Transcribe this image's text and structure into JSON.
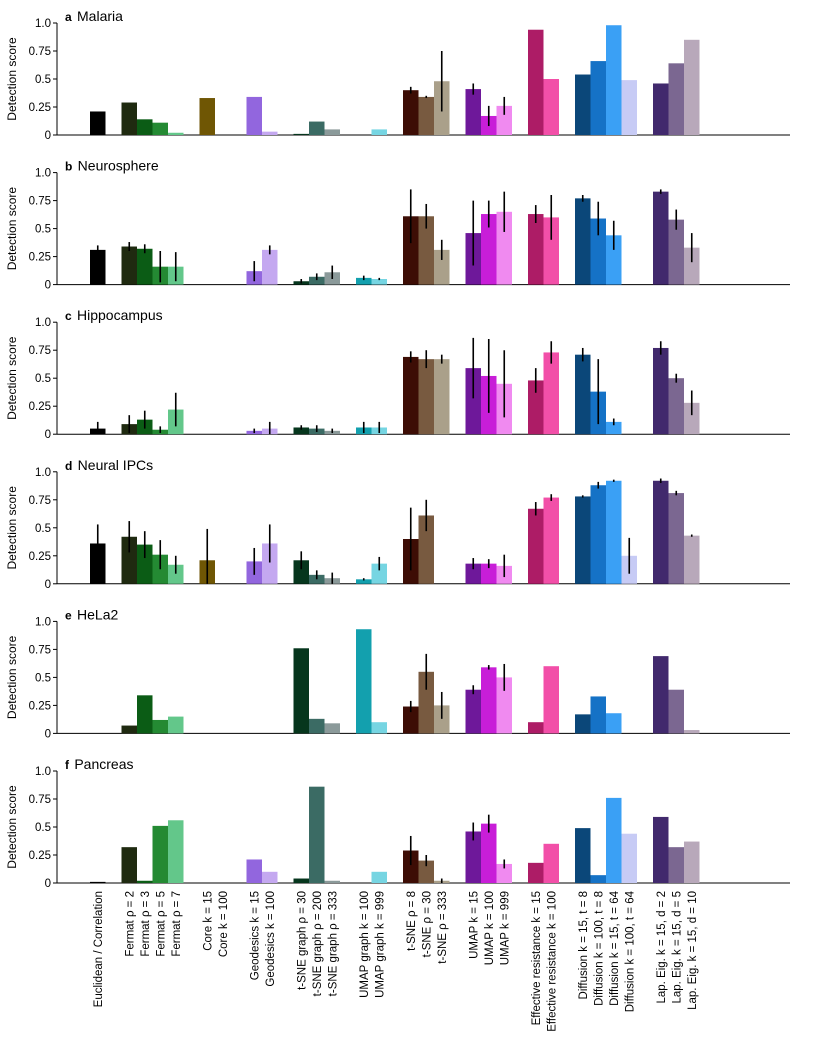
{
  "chart_data": {
    "type": "bar",
    "ylabel": "Detection score",
    "ylim": [
      0,
      1
    ],
    "yticks": [
      "0",
      "0.25",
      "0.5",
      "0.75",
      "1.0"
    ],
    "categories": [
      "Euclidean / Correlation",
      "Fermat ρ = 2",
      "Fermat ρ = 3",
      "Fermat ρ = 5",
      "Fermat ρ = 7",
      "Core k = 15",
      "Core k = 100",
      "Geodesics k = 15",
      "Geodesics k = 100",
      "t-SNE graph ρ = 30",
      "t-SNE graph ρ = 200",
      "t-SNE graph ρ = 333",
      "UMAP graph k = 100",
      "UMAP graph k = 999",
      "t-SNE ρ = 8",
      "t-SNE ρ = 30",
      "t-SNE ρ = 333",
      "UMAP k = 15",
      "UMAP k = 100",
      "UMAP k = 999",
      "Effective resistance k = 15",
      "Effective resistance k = 100",
      "Diffusion k = 15, t = 8",
      "Diffusion k = 100, t = 8",
      "Diffusion k = 15, t = 64",
      "Diffusion k = 100, t = 64",
      "Lap. Eig. k = 15, d = 2",
      "Lap. Eig. k = 15, d = 5",
      "Lap. Eig. k = 15, d = 10"
    ],
    "groups": [
      1,
      4,
      2,
      2,
      3,
      2,
      3,
      3,
      2,
      4,
      3
    ],
    "colors": [
      "#000000",
      "#1f2a10",
      "#0b5c15",
      "#248a33",
      "#63c78a",
      "#6f5604",
      "#a08720",
      "#9266de",
      "#c4a8f0",
      "#06361d",
      "#3b6b64",
      "#8b9a9a",
      "#13a0ae",
      "#76d5e2",
      "#3d0d05",
      "#785a40",
      "#aaa08a",
      "#6e189a",
      "#c81ed8",
      "#f08af0",
      "#ad1c66",
      "#f24fa8",
      "#0b4779",
      "#1572c6",
      "#3aa0f5",
      "#c7cbf5",
      "#41296d",
      "#7b6791",
      "#b8a8ba"
    ],
    "panels": [
      {
        "letter": "a",
        "title": "Malaria",
        "values": [
          0.21,
          0.29,
          0.14,
          0.11,
          0.02,
          0.33,
          null,
          0.34,
          0.03,
          0.01,
          0.12,
          0.05,
          null,
          0.05,
          0.4,
          0.34,
          0.48,
          0.41,
          0.17,
          0.26,
          0.94,
          0.5,
          0.54,
          0.66,
          0.98,
          0.49,
          0.46,
          0.64,
          0.85
        ],
        "errors": [
          null,
          null,
          null,
          null,
          null,
          null,
          null,
          null,
          null,
          null,
          null,
          null,
          null,
          null,
          0.03,
          0.01,
          0.27,
          0.05,
          0.09,
          0.08,
          null,
          null,
          null,
          null,
          null,
          null,
          null,
          null,
          null
        ]
      },
      {
        "letter": "b",
        "title": "Neurosphere",
        "values": [
          0.31,
          0.34,
          0.32,
          0.16,
          0.16,
          null,
          null,
          0.12,
          0.31,
          0.03,
          0.07,
          0.11,
          0.06,
          0.05,
          0.61,
          0.61,
          0.31,
          0.46,
          0.63,
          0.65,
          0.63,
          0.6,
          0.77,
          0.59,
          0.44,
          null,
          0.83,
          0.58,
          0.33
        ],
        "errors": [
          0.04,
          0.04,
          0.04,
          0.14,
          0.13,
          null,
          null,
          0.09,
          0.04,
          0.02,
          0.03,
          0.06,
          0.02,
          0.01,
          0.24,
          0.11,
          0.09,
          0.29,
          0.12,
          0.18,
          0.08,
          0.2,
          0.03,
          0.15,
          0.13,
          null,
          0.02,
          0.09,
          0.13
        ]
      },
      {
        "letter": "c",
        "title": "Hippocampus",
        "values": [
          0.05,
          0.09,
          0.13,
          0.04,
          0.22,
          null,
          null,
          0.03,
          0.05,
          0.06,
          0.05,
          0.03,
          0.06,
          0.06,
          0.69,
          0.67,
          0.67,
          0.59,
          0.52,
          0.45,
          0.48,
          0.73,
          0.71,
          0.38,
          0.11,
          null,
          0.77,
          0.5,
          0.28
        ],
        "errors": [
          0.06,
          0.08,
          0.08,
          0.03,
          0.15,
          null,
          null,
          0.02,
          0.06,
          0.02,
          0.03,
          0.02,
          0.05,
          0.05,
          0.05,
          0.08,
          0.04,
          0.27,
          0.33,
          0.3,
          0.11,
          0.1,
          0.06,
          0.29,
          0.03,
          null,
          0.06,
          0.04,
          0.11
        ]
      },
      {
        "letter": "d",
        "title": "Neural IPCs",
        "values": [
          0.36,
          0.42,
          0.35,
          0.26,
          0.17,
          0.21,
          null,
          0.2,
          0.36,
          0.21,
          0.08,
          0.05,
          0.04,
          0.18,
          0.4,
          0.61,
          null,
          0.18,
          0.18,
          0.16,
          0.67,
          0.77,
          0.78,
          0.88,
          0.92,
          0.25,
          0.92,
          0.81,
          0.43
        ],
        "errors": [
          0.17,
          0.14,
          0.12,
          0.13,
          0.08,
          0.28,
          null,
          0.12,
          0.17,
          0.08,
          0.04,
          0.05,
          0.01,
          0.06,
          0.28,
          0.14,
          null,
          0.05,
          0.04,
          0.1,
          0.06,
          0.03,
          0.01,
          0.03,
          0.01,
          0.16,
          0.02,
          0.02,
          0.01
        ]
      },
      {
        "letter": "e",
        "title": "HeLa2",
        "values": [
          null,
          0.07,
          0.34,
          0.12,
          0.15,
          null,
          null,
          null,
          null,
          0.76,
          0.13,
          0.09,
          0.93,
          0.1,
          0.24,
          0.55,
          0.25,
          0.39,
          0.59,
          0.5,
          0.1,
          0.6,
          0.17,
          0.33,
          0.18,
          null,
          0.69,
          0.39,
          0.03
        ],
        "errors": [
          null,
          null,
          null,
          null,
          null,
          null,
          null,
          null,
          null,
          null,
          null,
          null,
          null,
          null,
          0.05,
          0.16,
          0.12,
          0.04,
          0.02,
          0.12,
          null,
          null,
          null,
          null,
          null,
          null,
          null,
          null,
          null
        ]
      },
      {
        "letter": "f",
        "title": "Pancreas",
        "values": [
          0.01,
          0.32,
          0.02,
          0.51,
          0.56,
          null,
          null,
          0.21,
          0.1,
          0.04,
          0.86,
          0.02,
          null,
          0.1,
          0.29,
          0.2,
          0.02,
          0.46,
          0.53,
          0.17,
          0.18,
          0.35,
          0.49,
          0.07,
          0.76,
          0.44,
          0.59,
          0.32,
          0.37
        ],
        "errors": [
          null,
          null,
          null,
          null,
          null,
          null,
          null,
          null,
          null,
          null,
          null,
          null,
          null,
          null,
          0.13,
          0.05,
          0.02,
          0.08,
          0.08,
          0.04,
          null,
          null,
          null,
          null,
          null,
          null,
          null,
          null,
          null
        ]
      }
    ]
  }
}
